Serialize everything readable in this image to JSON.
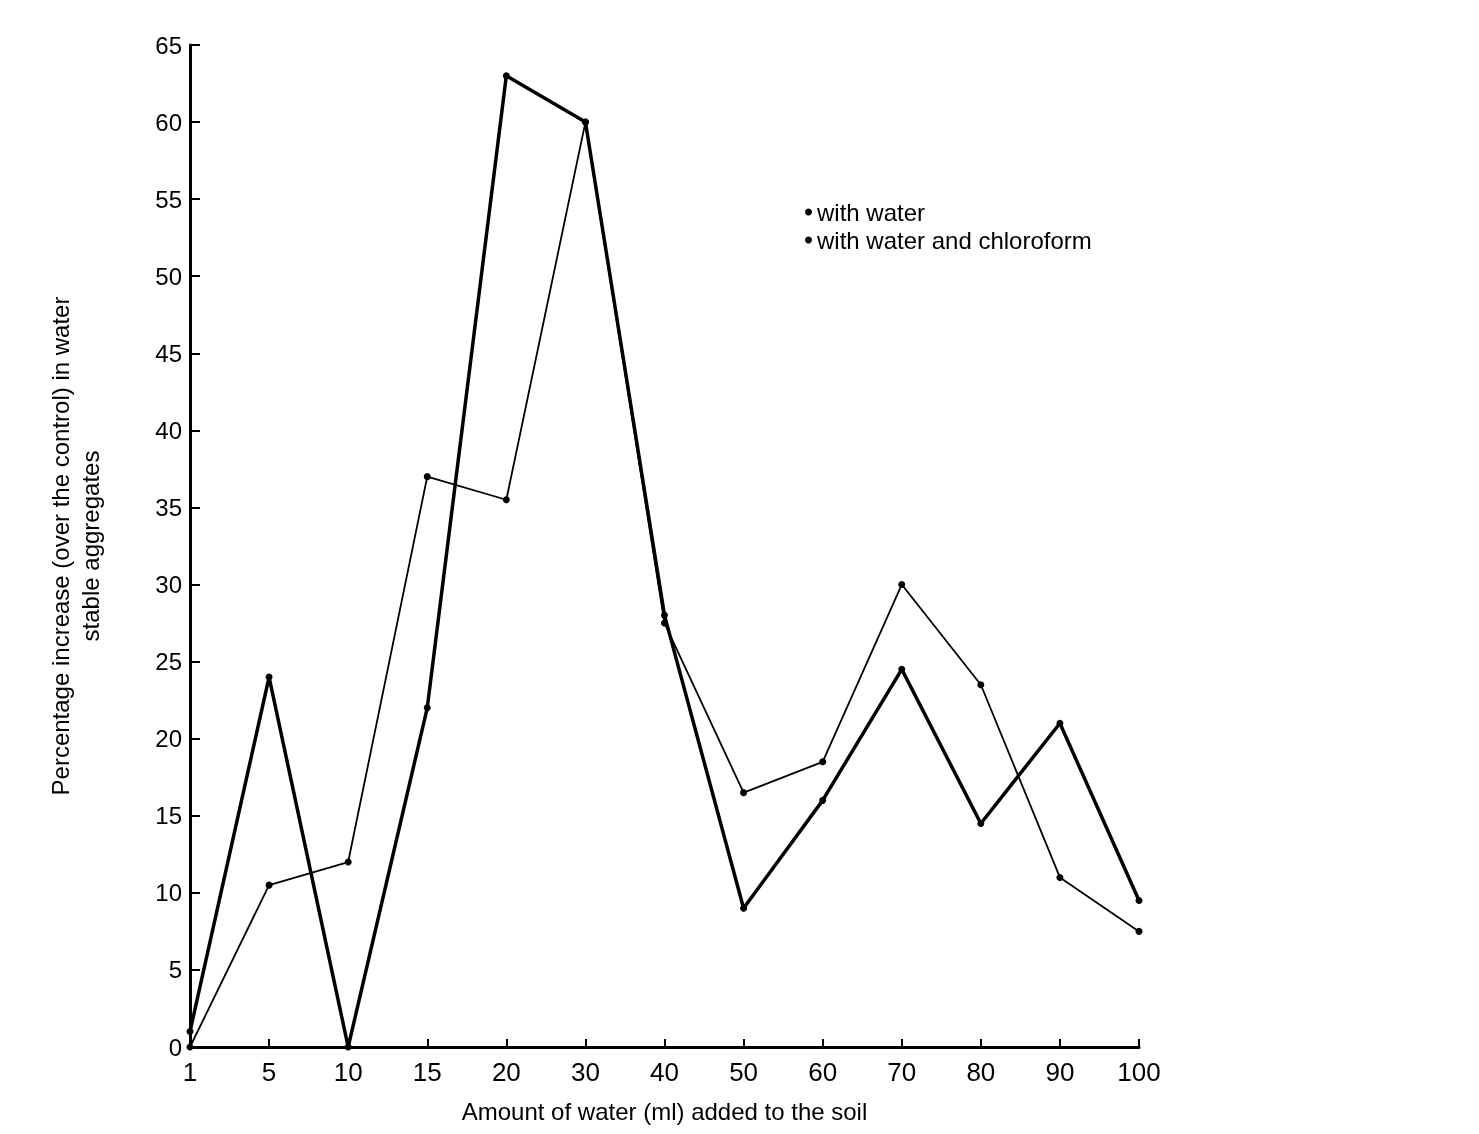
{
  "chart_data": {
    "type": "line",
    "xlabel": "Amount of water (ml) added to the soil",
    "ylabel": "Percentage increase (over the control) in water\nstable aggregates",
    "categories": [
      "1",
      "5",
      "10",
      "15",
      "20",
      "30",
      "40",
      "50",
      "60",
      "70",
      "80",
      "90",
      "100"
    ],
    "series": [
      {
        "name": "with water",
        "color": "#000000",
        "values": [
          1,
          24,
          0,
          22,
          63,
          60,
          28,
          9,
          16,
          24.5,
          14.5,
          21,
          9.5
        ]
      },
      {
        "name": "with water and chloroform",
        "color": "#000000",
        "values": [
          0,
          10.5,
          12,
          37,
          35.5,
          60,
          27.5,
          16.5,
          18.5,
          30,
          23.5,
          11,
          7.5
        ]
      }
    ],
    "ylim": [
      0,
      65
    ],
    "yticks": [
      0,
      5,
      10,
      15,
      20,
      25,
      30,
      35,
      40,
      45,
      50,
      55,
      60,
      65
    ],
    "grid": false,
    "legend": "top right",
    "marker": "circle",
    "line_style": "solid"
  }
}
